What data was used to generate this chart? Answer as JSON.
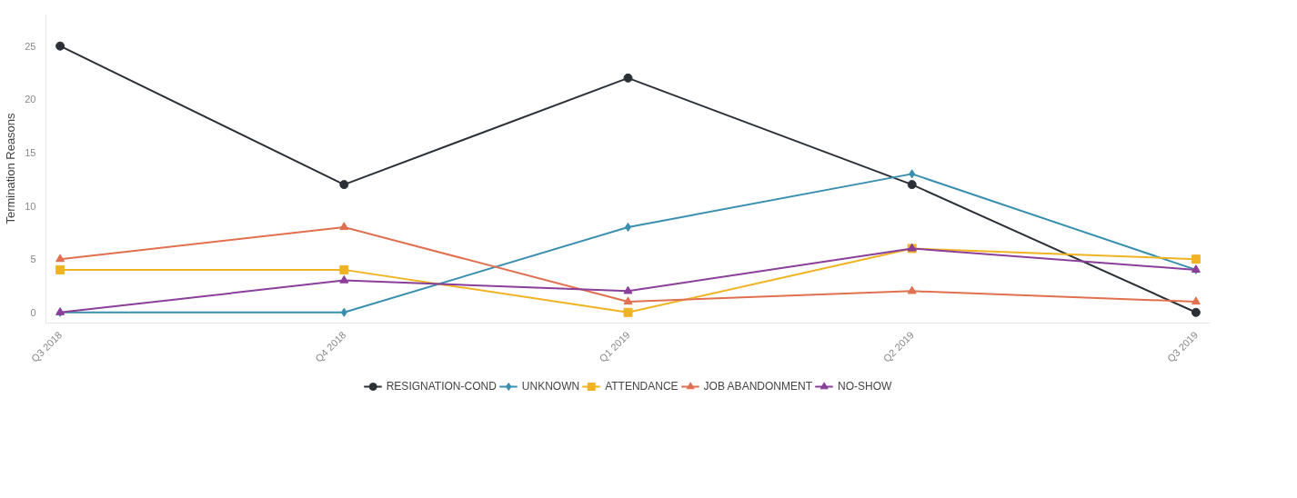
{
  "chart_data": {
    "type": "line",
    "ylabel": "Termination Reasons",
    "categories": [
      "Q3 2018",
      "Q4 2018",
      "Q1 2019",
      "Q2 2019",
      "Q3 2019"
    ],
    "ylim": [
      -1,
      28
    ],
    "yticks": [
      0,
      5,
      10,
      15,
      20,
      25
    ],
    "grid": false,
    "legend": "bottom",
    "line_style": "solid",
    "series": [
      {
        "name": "RESIGNATION-COND",
        "color": "#2b3036",
        "marker": "circle",
        "values": [
          25,
          12,
          22,
          12,
          0
        ]
      },
      {
        "name": "UNKNOWN",
        "color": "#3a8fb0",
        "marker": "diamond",
        "values": [
          0,
          0,
          8,
          13,
          4
        ]
      },
      {
        "name": "ATTENDANCE",
        "color": "#f0b323",
        "marker": "square",
        "values": [
          4,
          4,
          0,
          6,
          5
        ]
      },
      {
        "name": "JOB ABANDONMENT",
        "color": "#e07050",
        "marker": "triangle",
        "values": [
          5,
          8,
          1,
          2,
          1
        ]
      },
      {
        "name": "NO-SHOW",
        "color": "#8a3f9a",
        "marker": "triangle",
        "values": [
          0,
          3,
          2,
          6,
          4
        ]
      }
    ]
  }
}
